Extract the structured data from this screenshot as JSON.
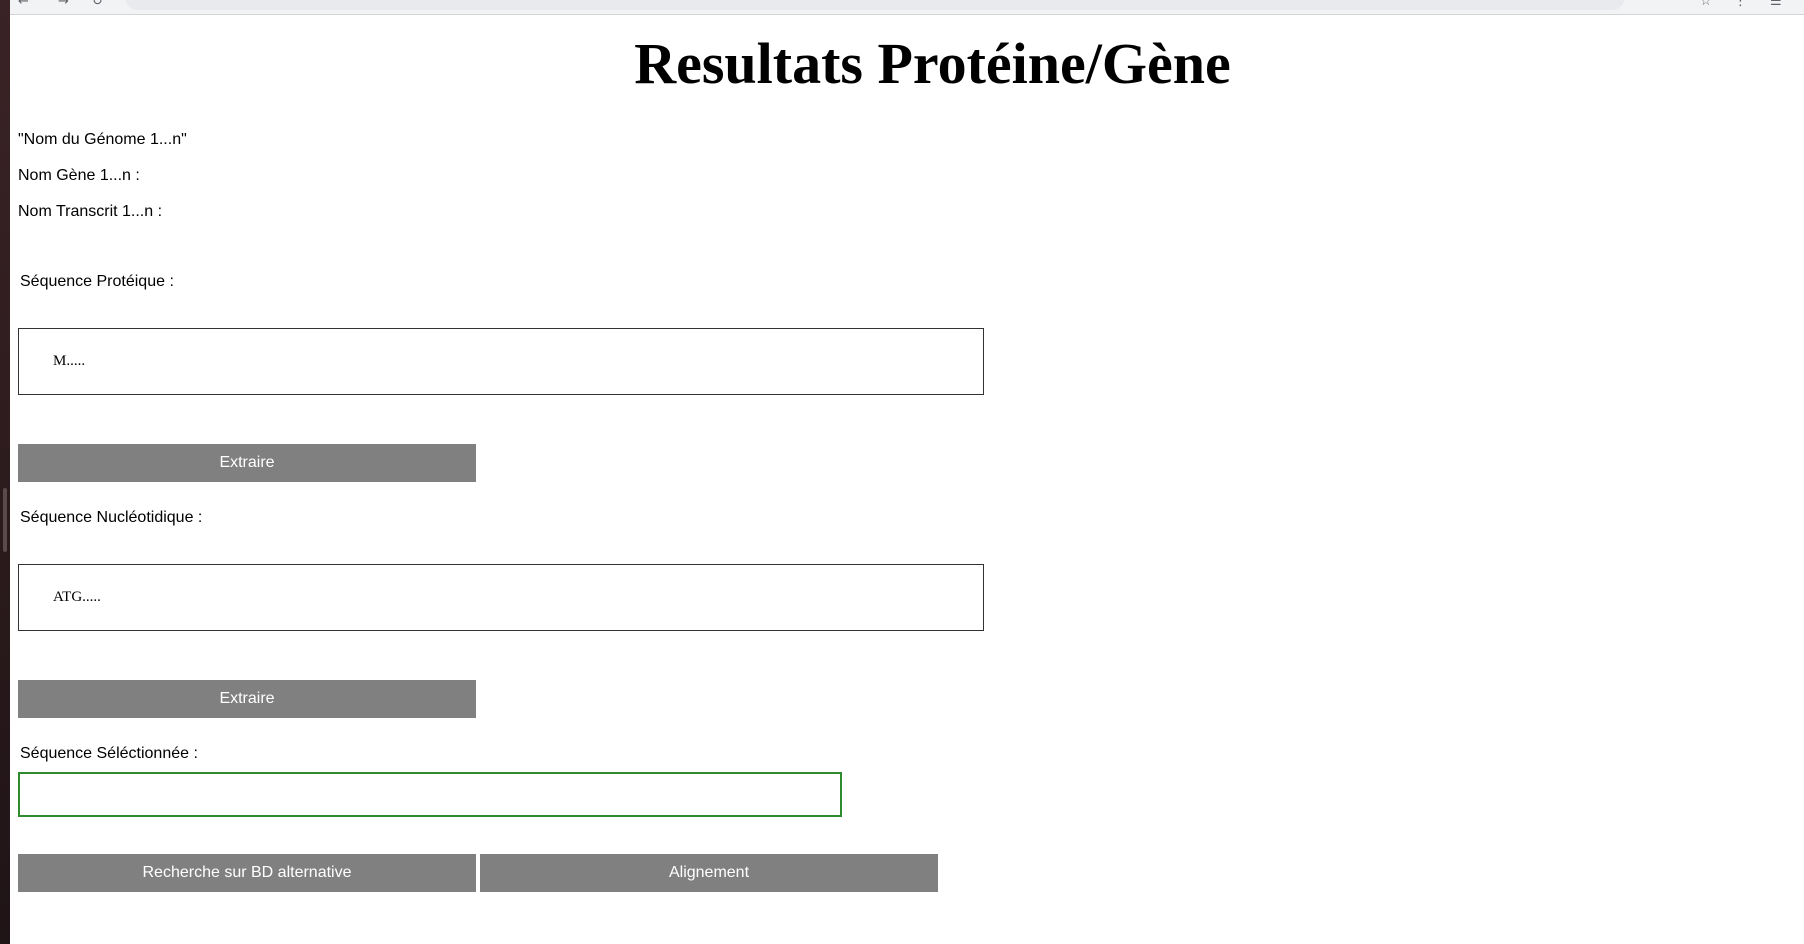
{
  "page": {
    "title": "Resultats Protéine/Gène",
    "genome_name": "\"Nom du Génome 1...n\"",
    "gene_name": "Nom Gène 1...n :",
    "transcript_name": "Nom Transcrit 1...n :"
  },
  "protein": {
    "label": "Séquence Protéique :",
    "sequence": "M.....",
    "extract_label": "Extraire"
  },
  "nucleotide": {
    "label": "Séquence Nucléotidique :",
    "sequence": "ATG.....",
    "extract_label": "Extraire"
  },
  "selected": {
    "label": "Séquence Séléctionnée :",
    "value": "",
    "border_color": "#2e8b2e"
  },
  "actions": {
    "alt_db_label": "Recherche sur BD alternative",
    "align_label": "Alignement"
  },
  "colors": {
    "button_bg": "#808080",
    "button_text": "#ffffff"
  }
}
